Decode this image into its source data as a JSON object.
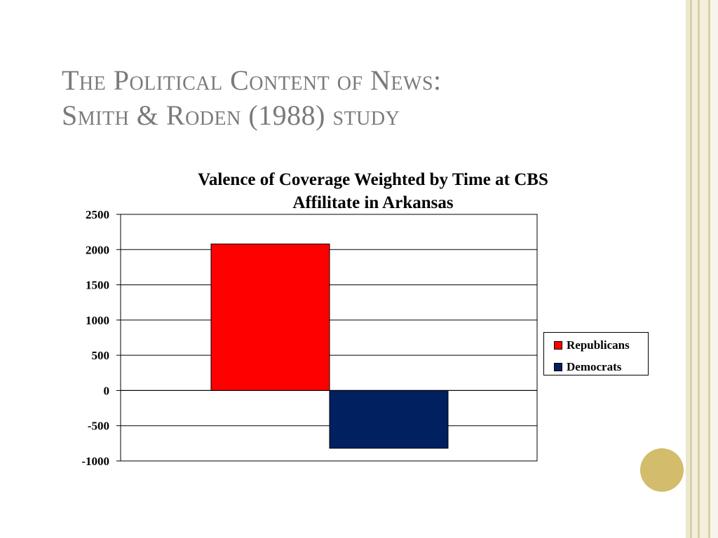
{
  "slide": {
    "title_line1": "The Political Content of News:",
    "title_line2": "Smith & Roden (1988) study"
  },
  "chart_data": {
    "type": "bar",
    "title_line1": "Valence of Coverage Weighted by Time at CBS",
    "title_line2": "Affilitate in Arkansas",
    "xlabel": "",
    "ylabel": "",
    "ylim": [
      -1000,
      2500
    ],
    "yticks": [
      "2500",
      "2000",
      "1500",
      "1000",
      "500",
      "0",
      "-500",
      "-1000"
    ],
    "grid": true,
    "legend_position": "right",
    "series": [
      {
        "name": "Republicans",
        "values": [
          2080
        ],
        "color": "#ff0000"
      },
      {
        "name": "Democrats",
        "values": [
          -820
        ],
        "color": "#002060"
      }
    ]
  }
}
